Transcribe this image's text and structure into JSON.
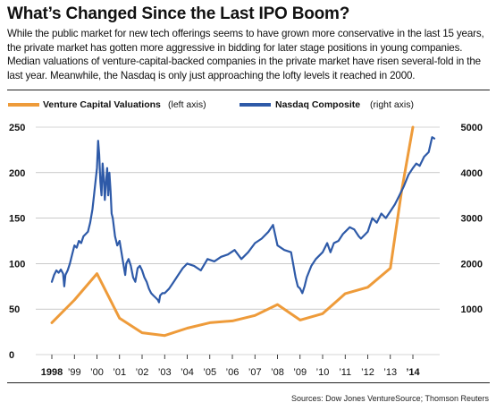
{
  "header": {
    "title": "What’s Changed Since the Last IPO Boom?",
    "subtitle": "While the public market for new tech offerings seems to have grown more conservative in the last 15 years, the private market has gotten more aggressive in bidding for later stage positions in young companies. Median valuations of venture-capital-backed companies in the private market have risen several-fold in the last year. Meanwhile, the Nasdaq is only just approaching the lofty levels it reached in 2000."
  },
  "colors": {
    "vc_series": "#ee9b3a",
    "nasdaq_series": "#2e5aa8",
    "gridline": "#aaaaaa",
    "text": "#111111"
  },
  "chart_data": {
    "type": "line",
    "legend": {
      "placement": "top",
      "items": [
        {
          "name": "Venture Capital Valuations",
          "note": "(left axis)"
        },
        {
          "name": "Nasdaq Composite",
          "note": "(right axis)"
        }
      ]
    },
    "x_tick_labels": [
      "1998",
      "’99",
      "’00",
      "’01",
      "’02",
      "’03",
      "’04",
      "’05",
      "’06",
      "’07",
      "’08",
      "’09",
      "’10",
      "’11",
      "’12",
      "’13",
      "’14"
    ],
    "y_left": {
      "ticks": [
        "0",
        "50",
        "100",
        "150",
        "200",
        "250"
      ],
      "range": [
        0,
        250
      ]
    },
    "y_right": {
      "ticks": [
        "1000",
        "2000",
        "3000",
        "4000",
        "5000"
      ],
      "range": [
        0,
        5000
      ]
    },
    "grid": "horizontal",
    "series": [
      {
        "name": "Venture Capital Valuations",
        "axis": "left",
        "x": [
          1998.0,
          1999.0,
          2000.0,
          2001.0,
          2002.0,
          2003.0,
          2004.0,
          2005.0,
          2006.0,
          2007.0,
          2008.0,
          2009.0,
          2010.0,
          2011.0,
          2012.0,
          2013.0,
          2013.5,
          2014.0
        ],
        "values": [
          35,
          60,
          89,
          40,
          24,
          21,
          29,
          35,
          37,
          43,
          55,
          38,
          45,
          67,
          74,
          95,
          180,
          250
        ]
      },
      {
        "name": "Nasdaq Composite",
        "axis": "right",
        "x": [
          1998.0,
          1998.1,
          1998.2,
          1998.3,
          1998.4,
          1998.5,
          1998.55,
          1998.6,
          1998.7,
          1998.8,
          1998.9,
          1999.0,
          1999.1,
          1999.2,
          1999.3,
          1999.4,
          1999.5,
          1999.6,
          1999.7,
          1999.8,
          1999.9,
          2000.0,
          2000.05,
          2000.1,
          2000.15,
          2000.2,
          2000.25,
          2000.3,
          2000.35,
          2000.4,
          2000.45,
          2000.5,
          2000.55,
          2000.6,
          2000.65,
          2000.7,
          2000.8,
          2000.9,
          2001.0,
          2001.1,
          2001.2,
          2001.25,
          2001.3,
          2001.4,
          2001.5,
          2001.6,
          2001.7,
          2001.8,
          2001.9,
          2002.0,
          2002.1,
          2002.2,
          2002.3,
          2002.4,
          2002.5,
          2002.6,
          2002.7,
          2002.75,
          2002.8,
          2002.9,
          2003.0,
          2003.2,
          2003.4,
          2003.6,
          2003.8,
          2004.0,
          2004.3,
          2004.6,
          2004.9,
          2005.2,
          2005.5,
          2005.8,
          2006.1,
          2006.4,
          2006.7,
          2007.0,
          2007.3,
          2007.6,
          2007.8,
          2008.0,
          2008.3,
          2008.6,
          2008.8,
          2008.9,
          2009.0,
          2009.1,
          2009.2,
          2009.3,
          2009.5,
          2009.7,
          2009.9,
          2010.0,
          2010.2,
          2010.35,
          2010.5,
          2010.7,
          2010.9,
          2011.0,
          2011.2,
          2011.4,
          2011.6,
          2011.7,
          2011.9,
          2012.0,
          2012.2,
          2012.4,
          2012.6,
          2012.8,
          2013.0,
          2013.2,
          2013.4,
          2013.6,
          2013.8,
          2014.0,
          2014.15,
          2014.3,
          2014.5,
          2014.7,
          2014.85,
          2014.95
        ],
        "values": [
          1600,
          1750,
          1850,
          1800,
          1870,
          1780,
          1500,
          1750,
          1850,
          2000,
          2200,
          2400,
          2350,
          2500,
          2450,
          2600,
          2650,
          2700,
          2900,
          3200,
          3650,
          4100,
          4700,
          4400,
          3800,
          3500,
          4200,
          3900,
          3400,
          3800,
          4100,
          3500,
          4000,
          3600,
          3100,
          3000,
          2600,
          2400,
          2500,
          2200,
          1900,
          1750,
          2000,
          2100,
          1950,
          1700,
          1600,
          1900,
          1950,
          1850,
          1700,
          1600,
          1450,
          1350,
          1300,
          1250,
          1200,
          1150,
          1300,
          1350,
          1350,
          1450,
          1600,
          1750,
          1900,
          2000,
          1950,
          1850,
          2100,
          2050,
          2150,
          2200,
          2300,
          2100,
          2250,
          2450,
          2550,
          2700,
          2850,
          2400,
          2300,
          2250,
          1700,
          1500,
          1450,
          1350,
          1500,
          1700,
          1950,
          2100,
          2200,
          2250,
          2450,
          2250,
          2450,
          2500,
          2650,
          2700,
          2800,
          2750,
          2600,
          2550,
          2650,
          2700,
          3000,
          2900,
          3100,
          3000,
          3150,
          3300,
          3500,
          3700,
          3950,
          4100,
          4200,
          4150,
          4350,
          4450,
          4780,
          4750
        ]
      }
    ]
  },
  "footer": {
    "source": "Sources: Dow Jones VentureSource; Thomson Reuters"
  }
}
